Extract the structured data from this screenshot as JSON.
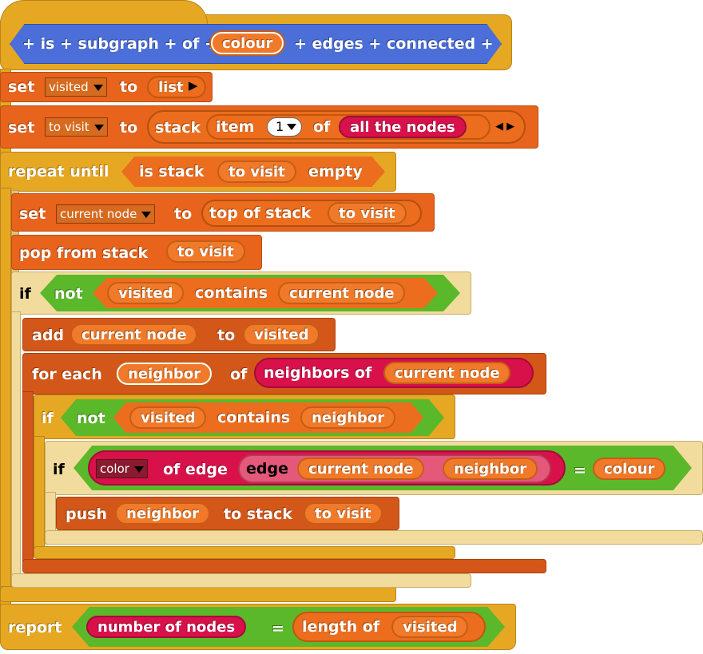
{
  "hat": {
    "prefix": "+ is + subgraph + of +",
    "param": "colour",
    "suffix": "+ edges + connected +"
  },
  "set1": {
    "kw": "set",
    "var": "visited",
    "to": "to",
    "value": "list"
  },
  "set2": {
    "kw": "set",
    "var": "to visit",
    "to": "to",
    "stack": "stack",
    "item": "item",
    "num": "1",
    "of": "of",
    "nodes": "all the nodes"
  },
  "repeat": {
    "kw": "repeat until",
    "pred": "is stack",
    "var": "to visit",
    "empty": "empty"
  },
  "set3": {
    "kw": "set",
    "var": "current node",
    "to": "to",
    "top": "top of stack",
    "arg": "to visit"
  },
  "pop": {
    "kw": "pop from stack",
    "arg": "to visit"
  },
  "if1": {
    "kw": "if",
    "not": "not",
    "a": "visited",
    "contains": "contains",
    "b": "current node"
  },
  "add": {
    "kw": "add",
    "a": "current node",
    "to": "to",
    "b": "visited"
  },
  "foreach": {
    "kw": "for each",
    "var": "neighbor",
    "of": "of",
    "fn": "neighbors of",
    "arg": "current node"
  },
  "if2": {
    "kw": "if",
    "not": "not",
    "a": "visited",
    "contains": "contains",
    "b": "neighbor"
  },
  "if3": {
    "kw": "if",
    "attr": "color",
    "ofedge": "of edge",
    "edge": "edge",
    "a": "current node",
    "b": "neighbor",
    "eq": "=",
    "c": "colour"
  },
  "push": {
    "kw": "push",
    "a": "neighbor",
    "to": "to stack",
    "b": "to visit"
  },
  "report": {
    "kw": "report",
    "a": "number of nodes",
    "eq": "=",
    "len": "length of",
    "b": "visited"
  }
}
